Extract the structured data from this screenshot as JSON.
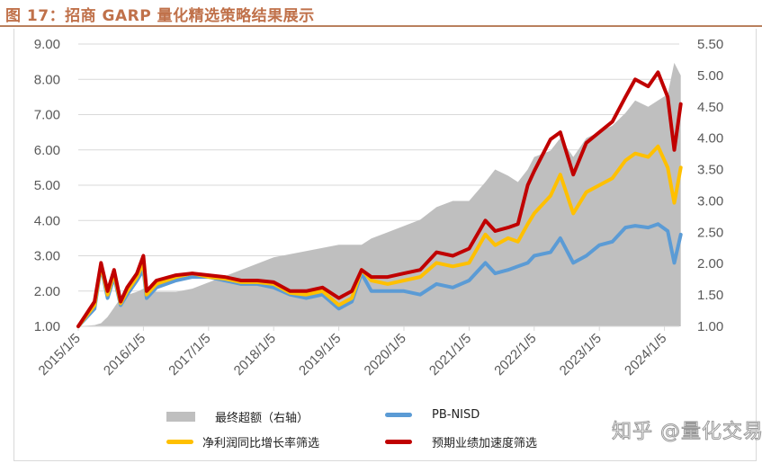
{
  "header": {
    "title": "图 17：招商 GARP 量化精选策略结果展示",
    "title_color": "#c0714a",
    "rule_color": "#b9805d"
  },
  "legend": {
    "items": [
      {
        "label": "最终超额（右轴）",
        "color": "#bfbfbf",
        "kind": "area"
      },
      {
        "label": "PB-NISD",
        "color": "#5b9bd5",
        "kind": "line"
      },
      {
        "label": "净利润同比增长率筛选",
        "color": "#ffc000",
        "kind": "line"
      },
      {
        "label": "预期业绩加速度筛选",
        "color": "#c00000",
        "kind": "line"
      }
    ]
  },
  "watermark": {
    "text": "知乎 @量化交易师"
  },
  "chart_data": {
    "type": "line",
    "title": "招商 GARP 量化精选策略结果展示",
    "xlabel": "",
    "ylabel": "",
    "y2label": "最终超额（右轴）",
    "grid": true,
    "legend_position": "bottom",
    "ylim": [
      1.0,
      9.0
    ],
    "y_ticks": [
      "1.00",
      "2.00",
      "3.00",
      "4.00",
      "5.00",
      "6.00",
      "7.00",
      "8.00",
      "9.00"
    ],
    "y2lim": [
      1.0,
      5.5
    ],
    "y2_ticks": [
      "1.00",
      "1.50",
      "2.00",
      "2.50",
      "3.00",
      "3.50",
      "4.00",
      "4.50",
      "5.00",
      "5.50"
    ],
    "x_ticks": [
      "2015/1/5",
      "2016/1/5",
      "2017/1/5",
      "2018/1/5",
      "2019/1/5",
      "2020/1/5",
      "2021/1/5",
      "2022/1/5",
      "2023/1/5",
      "2024/1/5"
    ],
    "x": [
      2015.0,
      2015.25,
      2015.35,
      2015.45,
      2015.55,
      2015.65,
      2015.75,
      2015.9,
      2016.0,
      2016.05,
      2016.2,
      2016.5,
      2016.75,
      2017.0,
      2017.25,
      2017.5,
      2017.75,
      2018.0,
      2018.25,
      2018.5,
      2018.75,
      2019.0,
      2019.2,
      2019.35,
      2019.5,
      2019.75,
      2020.0,
      2020.25,
      2020.5,
      2020.75,
      2021.0,
      2021.25,
      2021.4,
      2021.6,
      2021.75,
      2021.9,
      2022.0,
      2022.25,
      2022.4,
      2022.6,
      2022.8,
      2023.0,
      2023.2,
      2023.4,
      2023.55,
      2023.75,
      2023.9,
      2024.05,
      2024.15,
      2024.25
    ],
    "series": [
      {
        "name": "PB-NISD",
        "axis": "left",
        "color": "#5b9bd5",
        "values": [
          1.0,
          1.5,
          2.7,
          1.8,
          2.4,
          1.6,
          1.9,
          2.3,
          2.6,
          1.8,
          2.1,
          2.3,
          2.4,
          2.4,
          2.3,
          2.2,
          2.2,
          2.1,
          1.9,
          1.8,
          1.9,
          1.5,
          1.7,
          2.5,
          2.0,
          2.0,
          2.0,
          1.9,
          2.2,
          2.1,
          2.3,
          2.8,
          2.5,
          2.6,
          2.7,
          2.8,
          3.0,
          3.1,
          3.5,
          2.8,
          3.0,
          3.3,
          3.4,
          3.8,
          3.85,
          3.8,
          3.9,
          3.7,
          2.8,
          3.6
        ]
      },
      {
        "name": "净利润同比增长率筛选",
        "axis": "left",
        "color": "#ffc000",
        "values": [
          1.0,
          1.6,
          2.75,
          1.9,
          2.5,
          1.65,
          2.0,
          2.4,
          2.8,
          1.9,
          2.2,
          2.4,
          2.5,
          2.4,
          2.35,
          2.25,
          2.25,
          2.2,
          1.95,
          1.9,
          2.0,
          1.6,
          1.8,
          2.6,
          2.3,
          2.2,
          2.3,
          2.4,
          2.8,
          2.7,
          2.8,
          3.6,
          3.3,
          3.5,
          3.4,
          3.9,
          4.2,
          4.7,
          5.3,
          4.2,
          4.8,
          5.0,
          5.2,
          5.7,
          5.9,
          5.8,
          6.1,
          5.5,
          4.5,
          5.5
        ]
      },
      {
        "name": "预期业绩加速度筛选",
        "axis": "left",
        "color": "#c00000",
        "values": [
          1.0,
          1.7,
          2.8,
          2.0,
          2.6,
          1.7,
          2.1,
          2.5,
          3.0,
          2.0,
          2.3,
          2.45,
          2.5,
          2.45,
          2.4,
          2.3,
          2.3,
          2.25,
          2.0,
          2.0,
          2.1,
          1.8,
          2.0,
          2.6,
          2.4,
          2.4,
          2.5,
          2.6,
          3.1,
          3.0,
          3.2,
          4.0,
          3.7,
          3.8,
          3.9,
          5.0,
          5.4,
          6.3,
          6.5,
          5.3,
          6.2,
          6.5,
          6.8,
          7.5,
          8.0,
          7.8,
          8.2,
          7.5,
          6.0,
          7.3
        ]
      },
      {
        "name": "最终超额（右轴）",
        "axis": "right",
        "color": "#bfbfbf",
        "type": "area",
        "values": [
          1.0,
          1.02,
          1.05,
          1.15,
          1.3,
          1.45,
          1.5,
          1.55,
          1.6,
          1.6,
          1.55,
          1.55,
          1.6,
          1.7,
          1.8,
          1.9,
          2.0,
          2.1,
          2.15,
          2.2,
          2.25,
          2.3,
          2.3,
          2.3,
          2.4,
          2.5,
          2.6,
          2.7,
          2.9,
          3.0,
          3.0,
          3.3,
          3.5,
          3.4,
          3.3,
          3.5,
          3.7,
          3.8,
          4.0,
          3.7,
          4.0,
          4.1,
          4.2,
          4.4,
          4.6,
          4.5,
          4.6,
          4.7,
          5.2,
          5.0
        ]
      }
    ]
  }
}
